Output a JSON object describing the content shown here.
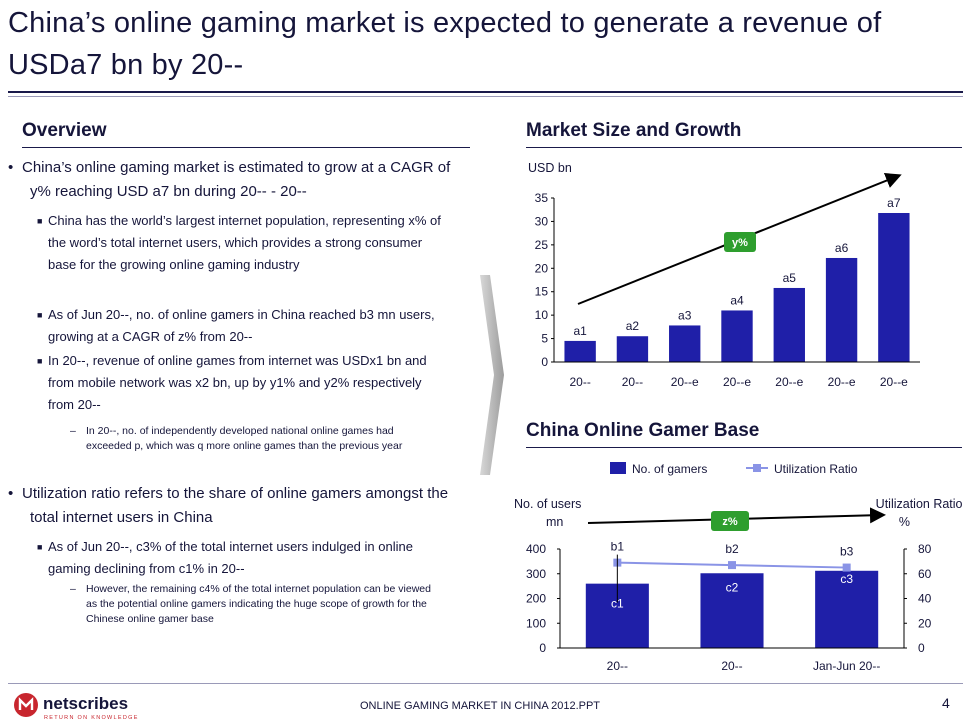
{
  "title": "China’s online gaming market is expected to generate a revenue of USDa7 bn by 20--",
  "overview": {
    "heading": "Overview",
    "bullets": [
      "China’s online gaming market is estimated to grow at a CAGR of y% reaching USD a7 bn during 20-- - 20--",
      "China has the world’s largest internet population, representing x% of the word’s total internet users,  which provides a strong consumer base for the growing online gaming industry",
      "As of Jun 20--, no. of online gamers in China reached  b3 mn users, growing at a CAGR of z% from 20--",
      "In 20--, revenue of online games from internet was USDx1 bn and from mobile network was x2 bn, up by y1% and y2% respectively from 20--",
      "In 20--,  no. of independently developed national online games had exceeded p, which was q more online games than the previous year",
      "Utilization ratio refers to the share of online gamers amongst the total internet users in China",
      "As of Jun 20--, c3% of the total internet users indulged in online gaming declining from c1% in 20--",
      "However, the remaining c4% of the total internet population can be viewed as the potential online gamers indicating the huge scope of growth for the Chinese online gamer base"
    ]
  },
  "chart_data": [
    {
      "type": "bar",
      "title": "Market Size and Growth",
      "ylabel": "USD bn",
      "xlabel": "",
      "ylim": [
        0,
        35
      ],
      "yticks": [
        "0",
        "5",
        "10",
        "15",
        "20",
        "25",
        "30",
        "35"
      ],
      "categories": [
        "20--",
        "20--",
        "20--e",
        "20--e",
        "20--e",
        "20--e",
        "20--e"
      ],
      "values": [
        4.5,
        5.5,
        7.8,
        11,
        15.8,
        22.2,
        31.8
      ],
      "data_labels": [
        "a1",
        "a2",
        "a3",
        "a4",
        "a5",
        "a6",
        "a7"
      ],
      "annotation": "y%",
      "bar_color": "#1f1fa8",
      "legend": false
    },
    {
      "type": "bar+line",
      "title": "China Online Gamer Base",
      "ylabel": "No. of users mn",
      "ylabel_right": "Utilization Ratio %",
      "categories": [
        "20--",
        "20--",
        "Jan-Jun 20--"
      ],
      "ylim": [
        0,
        400
      ],
      "ylim_right": [
        0,
        80
      ],
      "yticks": [
        "0",
        "100",
        "200",
        "300",
        "400"
      ],
      "yticks_right": [
        "0",
        "20",
        "40",
        "60",
        "80"
      ],
      "series": [
        {
          "name": "No. of gamers",
          "type": "bar",
          "values": [
            260,
            302,
            312
          ],
          "data_labels": [
            "c1",
            "c2",
            "c3"
          ],
          "color": "#1f1fa8"
        },
        {
          "name": "Utilization Ratio",
          "type": "line",
          "values": [
            69,
            67,
            65
          ],
          "data_labels": [
            "b1",
            "b2",
            "b3"
          ],
          "color": "#8a94e6"
        }
      ],
      "annotation": "z%",
      "legend": "top"
    }
  ],
  "footer": {
    "logo_text": "netscribes",
    "logo_tagline": "RETURN ON KNOWLEDGE",
    "text": "ONLINE GAMING MARKET IN CHINA 2012.PPT",
    "page_number": "4"
  },
  "colors": {
    "navy": "#15153a",
    "bar": "#1f1fa8",
    "line": "#8a94e6",
    "arrow_green": "#2e9e2e",
    "logo_red": "#c8262e"
  }
}
